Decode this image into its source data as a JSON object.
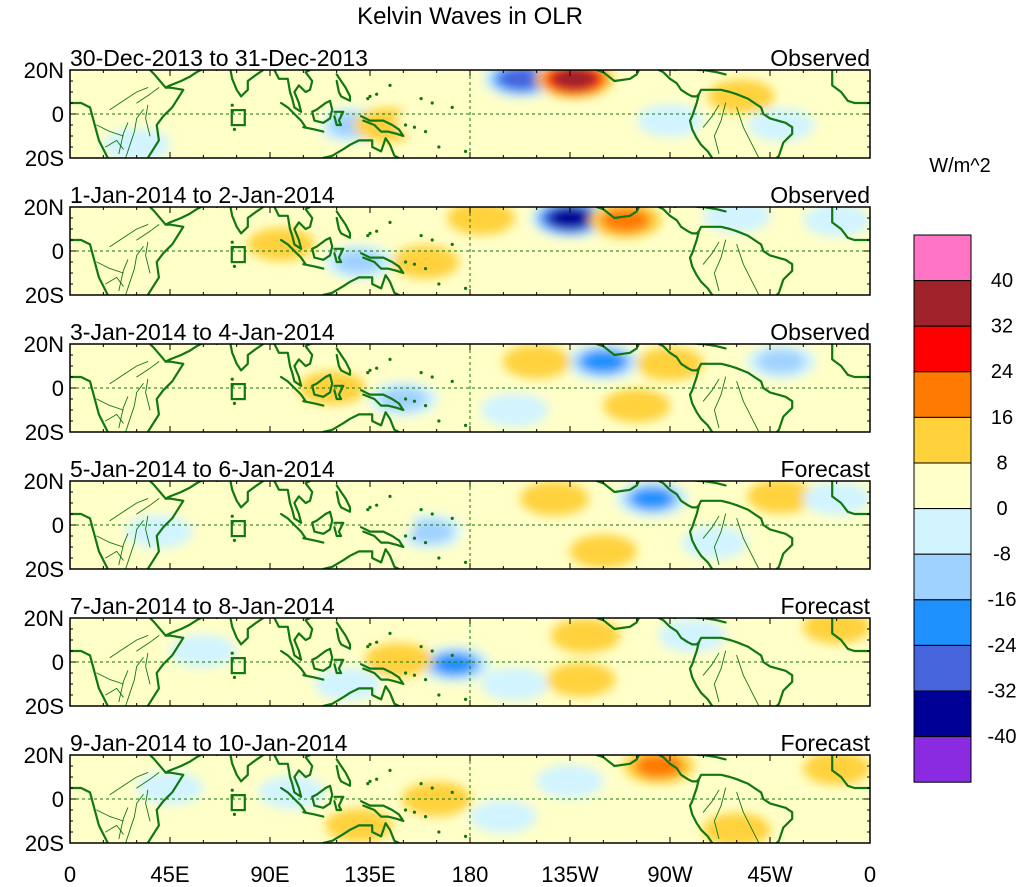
{
  "chart_data": {
    "type": "heatmap",
    "title": "Kelvin Waves in OLR",
    "variable": "OLR anomaly",
    "colorbar": {
      "label": "W/m^2",
      "levels": [
        40,
        32,
        24,
        16,
        8,
        0,
        -8,
        -16,
        -24,
        -32,
        -40
      ],
      "colors": [
        "#ff74c4",
        "#a0222a",
        "#ff0000",
        "#ff7a00",
        "#ffd23c",
        "#ffffc8",
        "#d2f4ff",
        "#a0d2ff",
        "#1e90ff",
        "#4664dc",
        "#000096",
        "#8a2be2"
      ]
    },
    "x_ticks": [
      "0",
      "45E",
      "90E",
      "135E",
      "180",
      "135W",
      "90W",
      "45W",
      "0"
    ],
    "y_ticks": [
      "20N",
      "0",
      "20S"
    ],
    "ylim": [
      -20,
      20
    ],
    "panels": [
      {
        "label": "30-Dec-2013 to 31-Dec-2013",
        "kind": "Observed",
        "blobs": [
          {
            "lon": 203,
            "lat": 16,
            "value": -30
          },
          {
            "lon": 227,
            "lat": 16,
            "value": 34
          },
          {
            "lon": 127,
            "lat": -5,
            "value": -18
          },
          {
            "lon": 143,
            "lat": -5,
            "value": 12
          },
          {
            "lon": 162,
            "lat": -4,
            "value": 6
          },
          {
            "lon": 100,
            "lat": -3,
            "value": 7
          },
          {
            "lon": 73,
            "lat": 3,
            "value": 6
          },
          {
            "lon": 30,
            "lat": -14,
            "value": -7
          },
          {
            "lon": 270,
            "lat": -3,
            "value": -6
          },
          {
            "lon": 302,
            "lat": 8,
            "value": 8
          },
          {
            "lon": 320,
            "lat": -5,
            "value": -6
          }
        ]
      },
      {
        "label": "1-Jan-2014 to 2-Jan-2014",
        "kind": "Observed",
        "blobs": [
          {
            "lon": 225,
            "lat": 15,
            "value": -38
          },
          {
            "lon": 250,
            "lat": 14,
            "value": 20
          },
          {
            "lon": 185,
            "lat": 15,
            "value": 10
          },
          {
            "lon": 95,
            "lat": 3,
            "value": 8
          },
          {
            "lon": 130,
            "lat": -5,
            "value": -15
          },
          {
            "lon": 160,
            "lat": -5,
            "value": 8
          },
          {
            "lon": 300,
            "lat": 16,
            "value": -10
          },
          {
            "lon": 40,
            "lat": 10,
            "value": 6
          },
          {
            "lon": 278,
            "lat": -10,
            "value": 7
          },
          {
            "lon": 345,
            "lat": 14,
            "value": -6
          }
        ]
      },
      {
        "label": "3-Jan-2014 to 4-Jan-2014",
        "kind": "Observed",
        "blobs": [
          {
            "lon": 240,
            "lat": 12,
            "value": -28
          },
          {
            "lon": 210,
            "lat": 12,
            "value": 10
          },
          {
            "lon": 270,
            "lat": 11,
            "value": 8
          },
          {
            "lon": 150,
            "lat": -5,
            "value": -15
          },
          {
            "lon": 118,
            "lat": 0,
            "value": 8
          },
          {
            "lon": 40,
            "lat": 2,
            "value": 6
          },
          {
            "lon": 320,
            "lat": 12,
            "value": -14
          },
          {
            "lon": 200,
            "lat": -10,
            "value": -10
          },
          {
            "lon": 255,
            "lat": -8,
            "value": 8
          }
        ]
      },
      {
        "label": "5-Jan-2014 to 6-Jan-2014",
        "kind": "Forecast",
        "blobs": [
          {
            "lon": 262,
            "lat": 12,
            "value": -22
          },
          {
            "lon": 218,
            "lat": 12,
            "value": 12
          },
          {
            "lon": 320,
            "lat": 13,
            "value": 10
          },
          {
            "lon": 162,
            "lat": -3,
            "value": -14
          },
          {
            "lon": 140,
            "lat": 0,
            "value": 6
          },
          {
            "lon": 40,
            "lat": -3,
            "value": -8
          },
          {
            "lon": 190,
            "lat": -5,
            "value": 6
          },
          {
            "lon": 240,
            "lat": -12,
            "value": 8
          },
          {
            "lon": 290,
            "lat": -8,
            "value": -6
          },
          {
            "lon": 345,
            "lat": 12,
            "value": -8
          }
        ]
      },
      {
        "label": "7-Jan-2014 to 8-Jan-2014",
        "kind": "Forecast",
        "blobs": [
          {
            "lon": 232,
            "lat": 12,
            "value": 14
          },
          {
            "lon": 173,
            "lat": -1,
            "value": -22
          },
          {
            "lon": 148,
            "lat": 1,
            "value": 10
          },
          {
            "lon": 230,
            "lat": -8,
            "value": 12
          },
          {
            "lon": 280,
            "lat": 12,
            "value": -10
          },
          {
            "lon": 200,
            "lat": -10,
            "value": -8
          },
          {
            "lon": 125,
            "lat": -10,
            "value": -7
          },
          {
            "lon": 345,
            "lat": 16,
            "value": 10
          },
          {
            "lon": 60,
            "lat": 5,
            "value": -6
          }
        ]
      },
      {
        "label": "9-Jan-2014 to 10-Jan-2014",
        "kind": "Forecast",
        "blobs": [
          {
            "lon": 265,
            "lat": 15,
            "value": 18
          },
          {
            "lon": 165,
            "lat": 0,
            "value": 14
          },
          {
            "lon": 100,
            "lat": 3,
            "value": -8
          },
          {
            "lon": 225,
            "lat": 8,
            "value": -10
          },
          {
            "lon": 195,
            "lat": -8,
            "value": -8
          },
          {
            "lon": 300,
            "lat": -14,
            "value": 10
          },
          {
            "lon": 130,
            "lat": -12,
            "value": 8
          },
          {
            "lon": 45,
            "lat": 5,
            "value": -6
          },
          {
            "lon": 345,
            "lat": 14,
            "value": 8
          }
        ]
      }
    ]
  }
}
